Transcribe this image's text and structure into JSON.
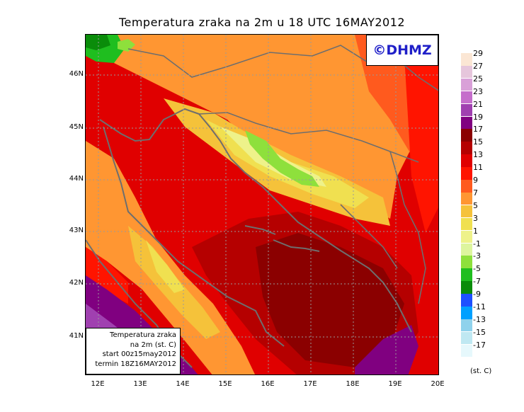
{
  "title": "Temperatura zraka na 2m u 18 UTC 16MAY2012",
  "watermark": "©DHMZ",
  "info_box": {
    "line1": "Temperatura zraka",
    "line2": "na 2m (st. C)",
    "line3": "start 00z15may2012",
    "line4": "termin 18Z16MAY2012"
  },
  "latitude_labels": [
    "46N",
    "45N",
    "44N",
    "43N",
    "42N",
    "41N"
  ],
  "longitude_labels": [
    "12E",
    "13E",
    "14E",
    "15E",
    "16E",
    "17E",
    "18E",
    "19E",
    "20E"
  ],
  "legend": {
    "unit": "(st. C)",
    "labels": [
      "29",
      "27",
      "25",
      "23",
      "21",
      "19",
      "17",
      "15",
      "13",
      "11",
      "9",
      "7",
      "5",
      "3",
      "1",
      "-1",
      "-3",
      "-5",
      "-7",
      "-9",
      "-11",
      "-13",
      "-15",
      "-17"
    ],
    "colors": [
      "#fbe6d4",
      "#e6c6dc",
      "#d9a0d8",
      "#c56ecb",
      "#a040b0",
      "#800080",
      "#8b0000",
      "#b50000",
      "#e00000",
      "#ff1400",
      "#ff5a1e",
      "#ff9632",
      "#f5c23a",
      "#f0e050",
      "#eef28a",
      "#ddf59e",
      "#8ee03c",
      "#1fbe1f",
      "#0a8c0a",
      "#1e50ff",
      "#00a0ff",
      "#8fd2ec",
      "#bfe8f2",
      "#e6f8fc"
    ]
  },
  "colors": {
    "coast": "#6e6e6e",
    "grid": "#9a9a9a",
    "watermark": "#1f1fc8"
  }
}
